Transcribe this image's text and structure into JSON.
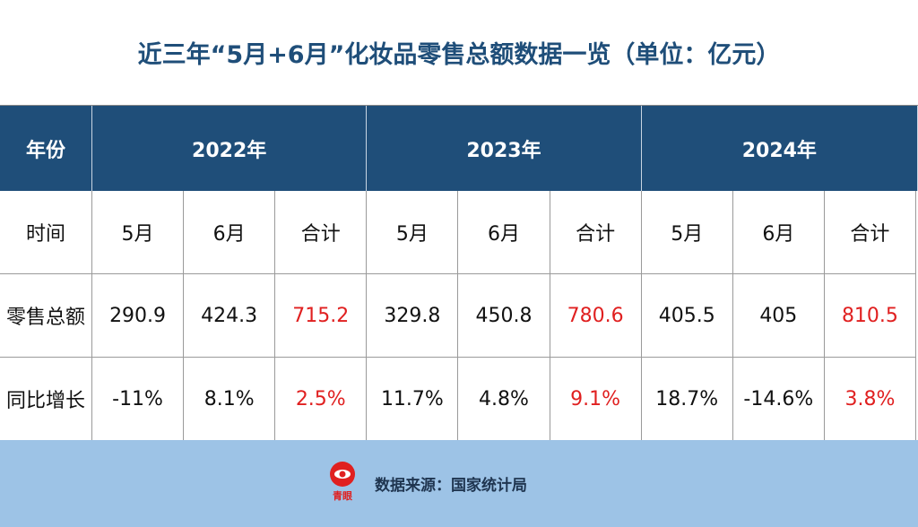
{
  "title": "近三年“5月+6月”化妆品零售总额数据一览（单位：亿元）",
  "table": {
    "header": [
      "年份",
      "2022年",
      "2023年",
      "2024年"
    ],
    "rows": [
      [
        "时间",
        "5月",
        "6月",
        "合计",
        "5月",
        "6月",
        "合计",
        "5月",
        "6月",
        "合计"
      ],
      [
        "零售总额",
        "290.9",
        "424.3",
        "715.2",
        "329.8",
        "450.8",
        "780.6",
        "405.5",
        "405",
        "810.5"
      ],
      [
        "同比增长",
        "-11%",
        "8.1%",
        "2.5%",
        "11.7%",
        "4.8%",
        "9.1%",
        "18.7%",
        "-14.6%",
        "3.8%"
      ]
    ]
  },
  "footer": {
    "logo": "青眼",
    "source": "数据来源：国家统计局"
  }
}
